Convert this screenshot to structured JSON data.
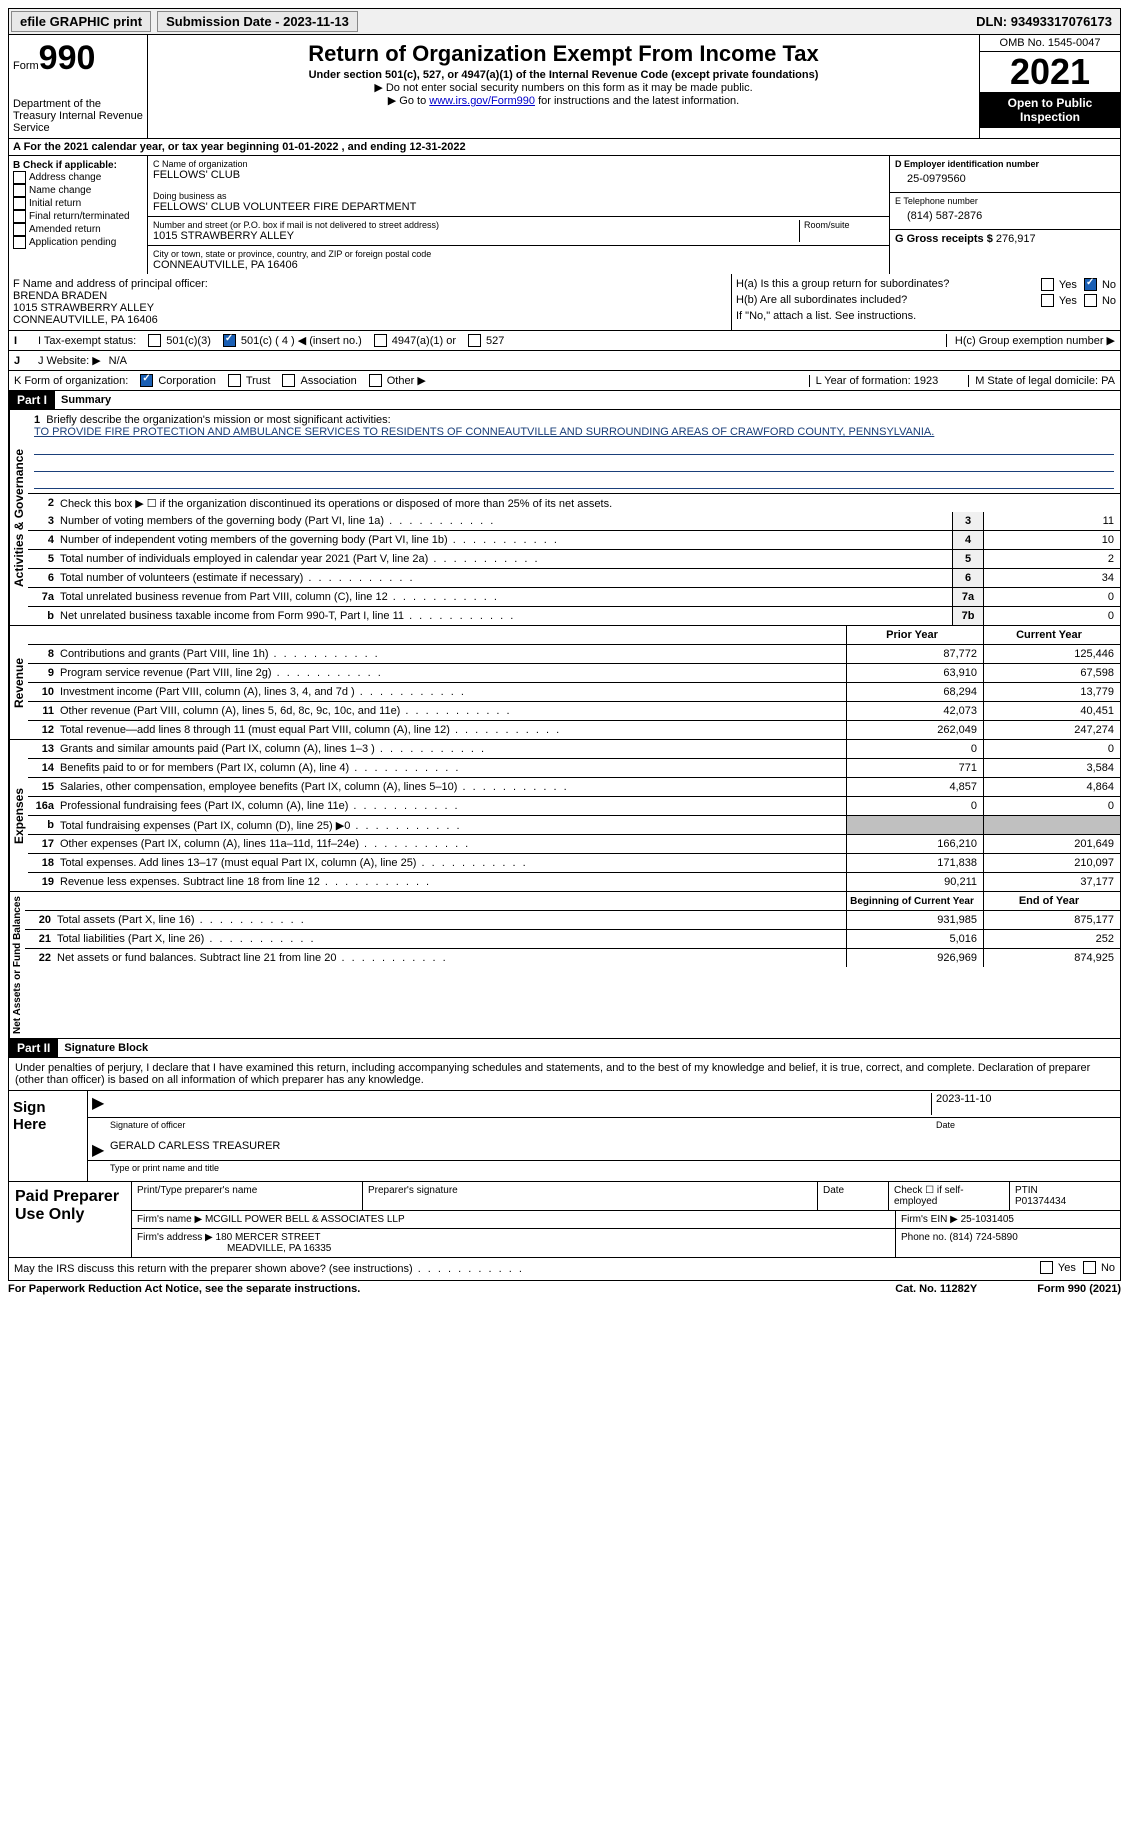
{
  "topbar": {
    "efile": "efile GRAPHIC print",
    "submission": "Submission Date - 2023-11-13",
    "dln_label": "DLN:",
    "dln": "93493317076173"
  },
  "header": {
    "form_label": "Form",
    "form_num": "990",
    "dept": "Department of the Treasury Internal Revenue Service",
    "title": "Return of Organization Exempt From Income Tax",
    "sub1": "Under section 501(c), 527, or 4947(a)(1) of the Internal Revenue Code (except private foundations)",
    "sub2": "▶ Do not enter social security numbers on this form as it may be made public.",
    "sub3_pre": "▶ Go to ",
    "sub3_link": "www.irs.gov/Form990",
    "sub3_post": " for instructions and the latest information.",
    "omb": "OMB No. 1545-0047",
    "year": "2021",
    "inspection": "Open to Public Inspection"
  },
  "A": {
    "text": "A For the 2021 calendar year, or tax year beginning 01-01-2022   , and ending 12-31-2022"
  },
  "B": {
    "label": "B Check if applicable:",
    "items": [
      "Address change",
      "Name change",
      "Initial return",
      "Final return/terminated",
      "Amended return",
      "Application pending"
    ]
  },
  "C": {
    "name_label": "C Name of organization",
    "name": "FELLOWS' CLUB",
    "dba_label": "Doing business as",
    "dba": "FELLOWS' CLUB VOLUNTEER FIRE DEPARTMENT",
    "addr_label": "Number and street (or P.O. box if mail is not delivered to street address)",
    "room_label": "Room/suite",
    "addr": "1015 STRAWBERRY ALLEY",
    "city_label": "City or town, state or province, country, and ZIP or foreign postal code",
    "city": "CONNEAUTVILLE, PA  16406"
  },
  "D": {
    "label": "D Employer identification number",
    "value": "25-0979560"
  },
  "E": {
    "label": "E Telephone number",
    "value": "(814) 587-2876"
  },
  "G": {
    "label": "G Gross receipts $",
    "value": "276,917"
  },
  "F": {
    "label": "F  Name and address of principal officer:",
    "name": "BRENDA BRADEN",
    "addr1": "1015 STRAWBERRY ALLEY",
    "addr2": "CONNEAUTVILLE, PA  16406"
  },
  "H": {
    "a": "H(a)  Is this a group return for subordinates?",
    "b": "H(b)  Are all subordinates included?",
    "b_note": "If \"No,\" attach a list. See instructions.",
    "c": "H(c)  Group exemption number ▶"
  },
  "I": {
    "label": "I  Tax-exempt status:",
    "o1": "501(c)(3)",
    "o2": "501(c) ( 4 ) ◀ (insert no.)",
    "o3": "4947(a)(1) or",
    "o4": "527"
  },
  "J": {
    "label": "J  Website: ▶",
    "value": "N/A"
  },
  "K": {
    "label": "K Form of organization:",
    "o1": "Corporation",
    "o2": "Trust",
    "o3": "Association",
    "o4": "Other ▶",
    "L": "L Year of formation: 1923",
    "M": "M State of legal domicile: PA"
  },
  "part1": {
    "hdr": "Part I",
    "title": "Summary",
    "side1": "Activities & Governance",
    "side2": "Revenue",
    "side3": "Expenses",
    "side4": "Net Assets or Fund Balances",
    "l1": "Briefly describe the organization's mission or most significant activities:",
    "mission": "TO PROVIDE FIRE PROTECTION AND AMBULANCE SERVICES TO RESIDENTS OF CONNEAUTVILLE AND SURROUNDING AREAS OF CRAWFORD COUNTY, PENNSYLVANIA.",
    "l2": "Check this box ▶ ☐  if the organization discontinued its operations or disposed of more than 25% of its net assets.",
    "lines_ag": [
      {
        "n": "3",
        "t": "Number of voting members of the governing body (Part VI, line 1a)",
        "box": "3",
        "v": "11"
      },
      {
        "n": "4",
        "t": "Number of independent voting members of the governing body (Part VI, line 1b)",
        "box": "4",
        "v": "10"
      },
      {
        "n": "5",
        "t": "Total number of individuals employed in calendar year 2021 (Part V, line 2a)",
        "box": "5",
        "v": "2"
      },
      {
        "n": "6",
        "t": "Total number of volunteers (estimate if necessary)",
        "box": "6",
        "v": "34"
      },
      {
        "n": "7a",
        "t": "Total unrelated business revenue from Part VIII, column (C), line 12",
        "box": "7a",
        "v": "0"
      },
      {
        "n": "b",
        "t": "Net unrelated business taxable income from Form 990-T, Part I, line 11",
        "box": "7b",
        "v": "0"
      }
    ],
    "col_hdr1": "Prior Year",
    "col_hdr2": "Current Year",
    "lines_rev": [
      {
        "n": "8",
        "t": "Contributions and grants (Part VIII, line 1h)",
        "p": "87,772",
        "c": "125,446"
      },
      {
        "n": "9",
        "t": "Program service revenue (Part VIII, line 2g)",
        "p": "63,910",
        "c": "67,598"
      },
      {
        "n": "10",
        "t": "Investment income (Part VIII, column (A), lines 3, 4, and 7d )",
        "p": "68,294",
        "c": "13,779"
      },
      {
        "n": "11",
        "t": "Other revenue (Part VIII, column (A), lines 5, 6d, 8c, 9c, 10c, and 11e)",
        "p": "42,073",
        "c": "40,451"
      },
      {
        "n": "12",
        "t": "Total revenue—add lines 8 through 11 (must equal Part VIII, column (A), line 12)",
        "p": "262,049",
        "c": "247,274"
      }
    ],
    "lines_exp": [
      {
        "n": "13",
        "t": "Grants and similar amounts paid (Part IX, column (A), lines 1–3 )",
        "p": "0",
        "c": "0"
      },
      {
        "n": "14",
        "t": "Benefits paid to or for members (Part IX, column (A), line 4)",
        "p": "771",
        "c": "3,584"
      },
      {
        "n": "15",
        "t": "Salaries, other compensation, employee benefits (Part IX, column (A), lines 5–10)",
        "p": "4,857",
        "c": "4,864"
      },
      {
        "n": "16a",
        "t": "Professional fundraising fees (Part IX, column (A), line 11e)",
        "p": "0",
        "c": "0"
      },
      {
        "n": "b",
        "t": "Total fundraising expenses (Part IX, column (D), line 25) ▶0",
        "p": "",
        "c": "",
        "gray": true
      },
      {
        "n": "17",
        "t": "Other expenses (Part IX, column (A), lines 11a–11d, 11f–24e)",
        "p": "166,210",
        "c": "201,649"
      },
      {
        "n": "18",
        "t": "Total expenses. Add lines 13–17 (must equal Part IX, column (A), line 25)",
        "p": "171,838",
        "c": "210,097"
      },
      {
        "n": "19",
        "t": "Revenue less expenses. Subtract line 18 from line 12",
        "p": "90,211",
        "c": "37,177"
      }
    ],
    "col_hdr3": "Beginning of Current Year",
    "col_hdr4": "End of Year",
    "lines_net": [
      {
        "n": "20",
        "t": "Total assets (Part X, line 16)",
        "p": "931,985",
        "c": "875,177"
      },
      {
        "n": "21",
        "t": "Total liabilities (Part X, line 26)",
        "p": "5,016",
        "c": "252"
      },
      {
        "n": "22",
        "t": "Net assets or fund balances. Subtract line 21 from line 20",
        "p": "926,969",
        "c": "874,925"
      }
    ]
  },
  "part2": {
    "hdr": "Part II",
    "title": "Signature Block",
    "decl": "Under penalties of perjury, I declare that I have examined this return, including accompanying schedules and statements, and to the best of my knowledge and belief, it is true, correct, and complete. Declaration of preparer (other than officer) is based on all information of which preparer has any knowledge.",
    "sign_here": "Sign Here",
    "sig_officer_lbl": "Signature of officer",
    "sig_date": "2023-11-10",
    "date_lbl": "Date",
    "officer": "GERALD CARLESS  TREASURER",
    "officer_lbl": "Type or print name and title",
    "paid": "Paid Preparer Use Only",
    "pp_name_lbl": "Print/Type preparer's name",
    "pp_sig_lbl": "Preparer's signature",
    "pp_date_lbl": "Date",
    "pp_check": "Check ☐ if self-employed",
    "ptin_lbl": "PTIN",
    "ptin": "P01374434",
    "firm_name_lbl": "Firm's name    ▶",
    "firm_name": "MCGILL POWER BELL & ASSOCIATES LLP",
    "firm_ein_lbl": "Firm's EIN ▶",
    "firm_ein": "25-1031405",
    "firm_addr_lbl": "Firm's address ▶",
    "firm_addr1": "180 MERCER STREET",
    "firm_addr2": "MEADVILLE, PA  16335",
    "phone_lbl": "Phone no.",
    "phone": "(814) 724-5890",
    "discuss": "May the IRS discuss this return with the preparer shown above? (see instructions)",
    "yes": "Yes",
    "no": "No"
  },
  "footer": {
    "left": "For Paperwork Reduction Act Notice, see the separate instructions.",
    "mid": "Cat. No. 11282Y",
    "right": "Form 990 (2021)"
  }
}
